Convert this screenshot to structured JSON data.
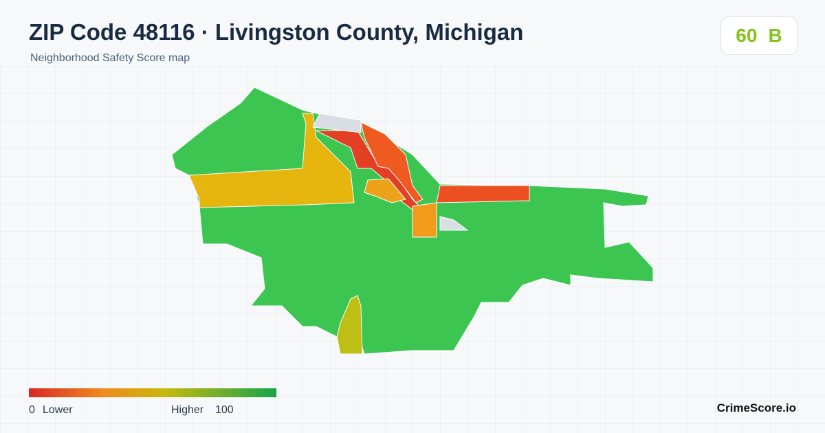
{
  "header": {
    "title": "ZIP Code 48116 · Livingston County, Michigan",
    "subtitle": "Neighborhood Safety Score map"
  },
  "score": {
    "value": "60",
    "grade": "B"
  },
  "legend": {
    "min": "0",
    "min_label": "Lower",
    "max_label": "Higher",
    "max": "100"
  },
  "brand": "CrimeScore.io"
}
